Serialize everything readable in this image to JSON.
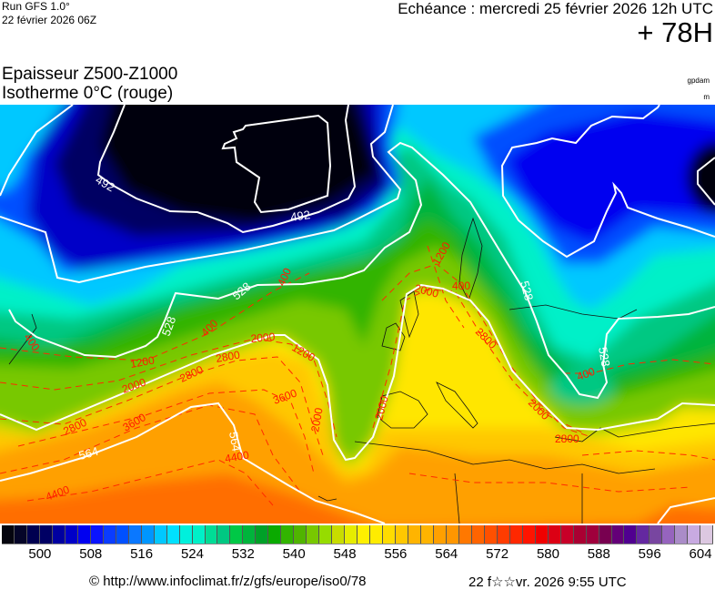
{
  "header": {
    "run_label": "Run GFS 1.0°",
    "run_date": "22 février 2026 06Z",
    "valid_time": "Echéance : mercredi 25 février 2026 12h UTC",
    "lead_time": "+ 78H",
    "title_line1": "Epaisseur Z500-Z1000",
    "title_line2": "Isotherme 0°C (rouge)",
    "unit_thickness": "gpdam",
    "unit_isotherm": "m"
  },
  "map": {
    "thickness_labels": [
      "492",
      "492",
      "528",
      "528",
      "528",
      "528",
      "564",
      "564"
    ],
    "isotherm_labels": [
      "400",
      "400",
      "400",
      "1200",
      "2000",
      "2800",
      "2800",
      "2000",
      "1200",
      "3600",
      "2000",
      "2800",
      "3600",
      "4400",
      "4400",
      "1200",
      "2000",
      "400",
      "2800",
      "2000",
      "2000",
      "2800",
      "400"
    ]
  },
  "colorbar": {
    "colors": [
      "#05050f",
      "#050528",
      "#000050",
      "#000064",
      "#0000a0",
      "#0000c8",
      "#0000f0",
      "#0a14ff",
      "#0a3cff",
      "#0050ff",
      "#0a78ff",
      "#0096ff",
      "#00c8ff",
      "#00e1ff",
      "#00f0dc",
      "#00f0c8",
      "#00dc96",
      "#00c882",
      "#00c846",
      "#00b43c",
      "#00a028",
      "#0aaa00",
      "#32b400",
      "#50b400",
      "#78c800",
      "#96dc00",
      "#c8dc00",
      "#e6ec00",
      "#fff000",
      "#ffec00",
      "#ffdc00",
      "#ffc800",
      "#ffb400",
      "#ffb400",
      "#ffa000",
      "#ff9600",
      "#ff7800",
      "#ff6400",
      "#ff5000",
      "#ff3c00",
      "#ff2800",
      "#ff1400",
      "#f00000",
      "#dc0014",
      "#c80028",
      "#aa0032",
      "#a0003c",
      "#780050",
      "#640078",
      "#500090",
      "#6428a0",
      "#7846a0",
      "#9664be",
      "#aa8cc8",
      "#c8aae1",
      "#dcc8e1"
    ],
    "labels": [
      "500",
      "508",
      "516",
      "524",
      "532",
      "540",
      "548",
      "556",
      "564",
      "572",
      "580",
      "588",
      "596",
      "604"
    ]
  },
  "footer": {
    "source": "© http://www.infoclimat.fr/z/gfs/europe/iso0/78",
    "generated": "22 f☆☆vr. 2026  9:55 UTC"
  }
}
